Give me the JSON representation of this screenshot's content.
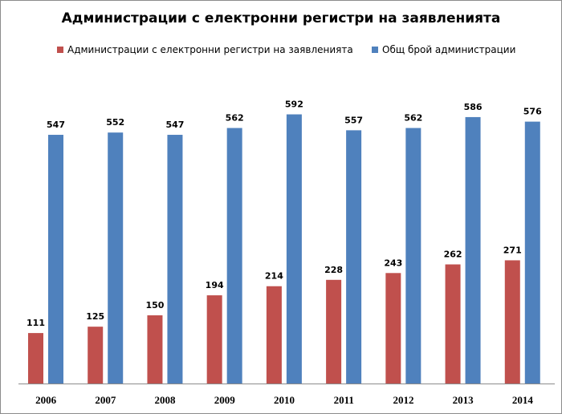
{
  "chart_data": {
    "type": "bar",
    "title": "Администрации с електронни регистри на заявленията",
    "xlabel": "",
    "ylabel": "",
    "categories": [
      "2006",
      "2007",
      "2008",
      "2009",
      "2010",
      "2011",
      "2012",
      "2013",
      "2014"
    ],
    "series": [
      {
        "name": "Администрации с електронни регистри на заявленията",
        "color": "#c0504d",
        "values": [
          111,
          125,
          150,
          194,
          214,
          228,
          243,
          262,
          271
        ]
      },
      {
        "name": "Общ брой администрации",
        "color": "#4f81bd",
        "values": [
          547,
          552,
          547,
          562,
          592,
          557,
          562,
          586,
          576
        ]
      }
    ],
    "ylim": [
      0,
      600
    ],
    "grid": false,
    "legend_position": "top",
    "data_labels": true
  }
}
